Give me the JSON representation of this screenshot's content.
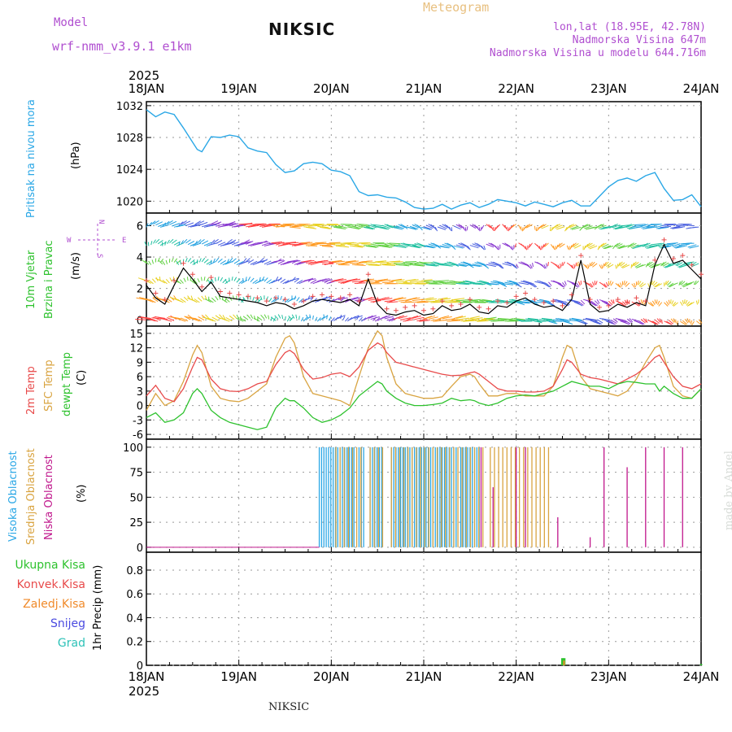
{
  "header": {
    "model_label": "Model",
    "model_name": "wrf-nmm_v3.9.1 e1km",
    "station": "NIKSIC",
    "meteogram": "Meteogram",
    "lonlat": "lon,lat (18.95E, 42.78N)",
    "elevation": "Nadmorska Visina 647m",
    "model_elevation": "Nadmorska Visina u modelu 644.716m",
    "footer_station": "NIKSIC",
    "credit": "made by Angel"
  },
  "colors": {
    "pressure": "#2aa7e6",
    "temp2m": "#e84a4a",
    "sfc": "#d9a441",
    "dew": "#2ec22e",
    "high_cloud": "#2aa7e6",
    "mid_cloud": "#d9a441",
    "low_cloud": "#c0178c",
    "total_precip": "#2ec22e",
    "conv_precip": "#e84a4a",
    "frozen": "#f08a2a",
    "snow": "#4a4ae0",
    "graupel": "#2ec2b8",
    "wind_label": "#2ec22e",
    "compass": "#b04fd0"
  },
  "chart_data": [
    {
      "type": "line",
      "name": "pressure",
      "ylabel_lines": [
        "Pritisak na nivou mora",
        "(hPa)"
      ],
      "year": "2025",
      "x_ticks": [
        "18JAN",
        "19JAN",
        "20JAN",
        "21JAN",
        "22JAN",
        "23JAN",
        "24JAN"
      ],
      "ylim": [
        1018.5,
        1032.5
      ],
      "y_ticks": [
        1020,
        1024,
        1028,
        1032
      ],
      "grid": true,
      "series": [
        {
          "x": [
            0,
            0.1,
            0.2,
            0.3,
            0.4,
            0.5,
            0.55,
            0.6,
            0.7,
            0.8,
            0.9,
            1,
            1.1,
            1.2,
            1.3,
            1.4,
            1.5,
            1.6,
            1.7,
            1.8,
            1.9,
            2,
            2.1,
            2.2,
            2.3,
            2.4,
            2.5,
            2.6,
            2.7,
            2.8,
            2.9,
            3,
            3.1,
            3.2,
            3.3,
            3.4,
            3.5,
            3.6,
            3.7,
            3.8,
            3.9,
            4,
            4.1,
            4.2,
            4.3,
            4.4,
            4.5,
            4.6,
            4.7,
            4.8,
            4.9,
            5,
            5.1,
            5.2,
            5.3,
            5.4,
            5.5,
            5.6,
            5.7,
            5.8,
            5.9,
            6
          ],
          "y": [
            1031.5,
            1030.6,
            1031.2,
            1030.9,
            1029.2,
            1027.4,
            1026.5,
            1026.2,
            1028.1,
            1028.0,
            1028.3,
            1028.1,
            1026.7,
            1026.3,
            1026.1,
            1024.6,
            1023.6,
            1023.8,
            1024.7,
            1024.9,
            1024.7,
            1023.9,
            1023.7,
            1023.2,
            1021.2,
            1020.7,
            1020.8,
            1020.5,
            1020.4,
            1019.9,
            1019.2,
            1019.0,
            1019.1,
            1019.6,
            1019.0,
            1019.5,
            1019.8,
            1019.2,
            1019.6,
            1020.2,
            1020.0,
            1019.8,
            1019.4,
            1019.9,
            1019.6,
            1019.3,
            1019.8,
            1020.1,
            1019.4,
            1019.4,
            1020.6,
            1021.8,
            1022.6,
            1022.9,
            1022.5,
            1023.2,
            1023.6,
            1021.6,
            1020.1,
            1020.2,
            1020.8,
            1019.3
          ]
        }
      ]
    },
    {
      "type": "line",
      "name": "wind",
      "ylabel_lines": [
        "10m Vjetar",
        "Brzina i Pravac",
        "(m/s)"
      ],
      "compass": {
        "n": "N",
        "s": "S",
        "w": "W",
        "e": "E"
      },
      "ylim": [
        -0.4,
        6.8
      ],
      "y_ticks": [
        0,
        2,
        4,
        6
      ],
      "grid": true,
      "series": [
        {
          "name": "speed",
          "x": [
            0,
            0.1,
            0.2,
            0.3,
            0.4,
            0.5,
            0.6,
            0.7,
            0.8,
            0.9,
            1,
            1.1,
            1.2,
            1.3,
            1.4,
            1.5,
            1.6,
            1.7,
            1.8,
            1.9,
            2,
            2.1,
            2.2,
            2.3,
            2.4,
            2.5,
            2.6,
            2.7,
            2.8,
            2.9,
            3,
            3.1,
            3.2,
            3.3,
            3.4,
            3.5,
            3.6,
            3.7,
            3.8,
            3.9,
            4,
            4.1,
            4.2,
            4.3,
            4.4,
            4.5,
            4.6,
            4.7,
            4.8,
            4.9,
            5,
            5.1,
            5.2,
            5.3,
            5.4,
            5.5,
            5.6,
            5.7,
            5.8,
            5.9,
            6
          ],
          "y": [
            2.2,
            1.4,
            1.0,
            2.2,
            3.3,
            2.6,
            1.8,
            2.4,
            1.5,
            1.4,
            1.3,
            1.2,
            1.1,
            0.9,
            1.1,
            1.0,
            0.7,
            0.9,
            1.2,
            1.3,
            1.2,
            1.1,
            1.3,
            0.9,
            2.6,
            1.0,
            0.4,
            0.3,
            0.5,
            0.6,
            0.3,
            0.4,
            0.9,
            0.6,
            0.7,
            1.0,
            0.5,
            0.4,
            0.9,
            0.8,
            1.2,
            1.4,
            1.0,
            0.8,
            0.9,
            0.6,
            1.3,
            3.8,
            1.0,
            0.5,
            0.6,
            1.0,
            0.8,
            1.1,
            0.9,
            3.5,
            4.8,
            3.6,
            3.8,
            3.2,
            2.6
          ]
        }
      ]
    },
    {
      "type": "line",
      "name": "temperature",
      "ylabel_lines": [
        "2m Temp",
        "SFC Temp",
        "dewpt Temp",
        "(C)"
      ],
      "ylim": [
        -7,
        16.5
      ],
      "y_ticks": [
        -6,
        -3,
        0,
        3,
        6,
        9,
        12,
        15
      ],
      "grid": true,
      "series": [
        {
          "name": "2m Temp",
          "x": [
            0,
            0.1,
            0.2,
            0.3,
            0.4,
            0.5,
            0.55,
            0.6,
            0.7,
            0.8,
            0.9,
            1,
            1.1,
            1.2,
            1.3,
            1.4,
            1.5,
            1.55,
            1.6,
            1.7,
            1.8,
            1.9,
            2,
            2.1,
            2.2,
            2.3,
            2.4,
            2.5,
            2.55,
            2.6,
            2.7,
            2.8,
            2.9,
            3,
            3.1,
            3.2,
            3.3,
            3.4,
            3.5,
            3.55,
            3.6,
            3.7,
            3.8,
            3.9,
            4,
            4.1,
            4.2,
            4.3,
            4.4,
            4.5,
            4.55,
            4.6,
            4.7,
            4.8,
            4.9,
            5,
            5.1,
            5.2,
            5.3,
            5.4,
            5.5,
            5.55,
            5.6,
            5.7,
            5.8,
            5.9,
            6
          ],
          "y": [
            2.0,
            4.2,
            1.5,
            0.8,
            3.5,
            8.0,
            10.0,
            9.5,
            5.5,
            3.5,
            3.0,
            2.9,
            3.5,
            4.5,
            5.0,
            8.5,
            11.0,
            11.5,
            10.8,
            7.5,
            5.5,
            5.8,
            6.5,
            6.8,
            6.0,
            8.0,
            11.5,
            13.0,
            12.5,
            11.0,
            9.0,
            8.5,
            8.0,
            7.5,
            7.0,
            6.5,
            6.2,
            6.3,
            6.8,
            7.0,
            6.5,
            5.0,
            3.5,
            3.0,
            3.0,
            2.8,
            2.8,
            3.0,
            4.0,
            7.5,
            9.5,
            9.0,
            6.5,
            5.8,
            5.5,
            5.0,
            4.5,
            5.5,
            6.5,
            8.0,
            10.0,
            10.5,
            9.0,
            6.0,
            4.0,
            3.5,
            4.5
          ]
        },
        {
          "name": "SFC Temp",
          "x": [
            0,
            0.1,
            0.2,
            0.3,
            0.4,
            0.5,
            0.55,
            0.6,
            0.7,
            0.8,
            0.9,
            1,
            1.1,
            1.2,
            1.3,
            1.4,
            1.5,
            1.55,
            1.6,
            1.7,
            1.8,
            1.9,
            2,
            2.1,
            2.2,
            2.3,
            2.4,
            2.5,
            2.55,
            2.6,
            2.7,
            2.8,
            2.9,
            3,
            3.1,
            3.2,
            3.3,
            3.4,
            3.5,
            3.55,
            3.6,
            3.7,
            3.8,
            3.9,
            4,
            4.1,
            4.2,
            4.3,
            4.4,
            4.5,
            4.55,
            4.6,
            4.7,
            4.8,
            4.9,
            5,
            5.1,
            5.2,
            5.3,
            5.4,
            5.5,
            5.55,
            5.6,
            5.7,
            5.8,
            5.9,
            6
          ],
          "y": [
            -1.0,
            2.5,
            0.0,
            1.0,
            5.0,
            10.5,
            12.5,
            11.0,
            4.0,
            1.5,
            1.0,
            0.8,
            1.5,
            3.0,
            4.5,
            10.0,
            14.0,
            14.5,
            13.0,
            6.0,
            2.5,
            2.0,
            1.5,
            1.0,
            0.0,
            6.0,
            12.0,
            15.5,
            14.5,
            10.0,
            4.5,
            2.5,
            2.0,
            1.5,
            1.5,
            1.8,
            4.0,
            6.0,
            6.5,
            6.0,
            4.5,
            2.0,
            2.0,
            2.5,
            2.5,
            2.0,
            2.0,
            2.0,
            4.0,
            10.0,
            12.5,
            12.0,
            6.0,
            3.5,
            3.0,
            2.5,
            2.0,
            3.0,
            5.5,
            9.0,
            12.0,
            12.5,
            10.0,
            4.0,
            2.0,
            1.5,
            3.5
          ]
        },
        {
          "name": "dewpt Temp",
          "x": [
            0,
            0.1,
            0.2,
            0.3,
            0.4,
            0.5,
            0.55,
            0.6,
            0.7,
            0.8,
            0.9,
            1,
            1.1,
            1.2,
            1.3,
            1.4,
            1.5,
            1.55,
            1.6,
            1.7,
            1.8,
            1.9,
            2,
            2.1,
            2.2,
            2.3,
            2.4,
            2.5,
            2.55,
            2.6,
            2.7,
            2.8,
            2.9,
            3,
            3.1,
            3.2,
            3.3,
            3.4,
            3.5,
            3.55,
            3.6,
            3.7,
            3.8,
            3.9,
            4,
            4.1,
            4.2,
            4.3,
            4.4,
            4.5,
            4.55,
            4.6,
            4.7,
            4.8,
            4.9,
            5,
            5.1,
            5.2,
            5.3,
            5.4,
            5.5,
            5.55,
            5.6,
            5.7,
            5.8,
            5.9,
            6
          ],
          "y": [
            -2.5,
            -1.5,
            -3.5,
            -3.0,
            -1.5,
            2.5,
            3.5,
            2.5,
            -1.0,
            -2.5,
            -3.5,
            -4.0,
            -4.5,
            -5.0,
            -4.5,
            -0.5,
            1.5,
            1.0,
            1.0,
            -0.5,
            -2.5,
            -3.5,
            -3.0,
            -2.0,
            -0.5,
            2.0,
            3.5,
            5.0,
            4.5,
            3.0,
            1.5,
            0.5,
            0.0,
            0.0,
            0.2,
            0.5,
            1.5,
            1.0,
            1.2,
            1.0,
            0.5,
            0.0,
            0.5,
            1.5,
            2.0,
            2.2,
            2.0,
            2.5,
            3.0,
            4.0,
            4.5,
            5.0,
            4.5,
            4.0,
            4.0,
            3.5,
            4.5,
            5.0,
            4.8,
            4.5,
            4.5,
            3.0,
            4.0,
            2.5,
            1.5,
            1.5,
            3.5
          ]
        }
      ]
    },
    {
      "type": "bar",
      "name": "cloud",
      "ylabel_lines": [
        "Visoka Oblacnost",
        "Srednja Oblacnost",
        "Niska Oblacnost",
        "(%)"
      ],
      "ylim": [
        -5,
        108
      ],
      "y_ticks": [
        0,
        25,
        50,
        75,
        100
      ],
      "grid": true,
      "series": [
        {
          "name": "high",
          "ranges": [
            [
              1.87,
              2.25
            ],
            [
              2.3,
              2.35
            ],
            [
              2.42,
              2.55
            ],
            [
              2.65,
              3.35
            ],
            [
              3.4,
              3.6
            ]
          ],
          "step": 0.025,
          "value": 100
        },
        {
          "name": "mid",
          "ranges": [
            [
              2.05,
              2.35
            ],
            [
              2.42,
              2.58
            ],
            [
              2.65,
              3.65
            ],
            [
              3.72,
              4.35
            ]
          ],
          "step": 0.045,
          "value": 100
        },
        {
          "name": "low",
          "x": [
            3.62,
            3.75,
            4.0,
            4.1,
            4.45,
            4.8,
            4.95,
            5.2,
            5.4,
            5.6,
            5.8
          ],
          "y": [
            100,
            60,
            100,
            100,
            30,
            10,
            100,
            80,
            100,
            100,
            100
          ]
        }
      ]
    },
    {
      "type": "bar",
      "name": "precip",
      "ylabel": "1hr Precip (mm)",
      "legend": [
        "Ukupna Kisa",
        "Konvek.Kisa",
        "Zaledj.Kisa",
        "Snijeg",
        "Grad"
      ],
      "ylim": [
        0,
        0.95
      ],
      "y_ticks": [
        0,
        0.2,
        0.4,
        0.6,
        0.8
      ],
      "grid": true,
      "series": [
        {
          "name": "Ukupna Kisa",
          "x": [
            4.5,
            4.52,
            6.0
          ],
          "y": [
            0.06,
            0.06,
            0.01
          ]
        },
        {
          "name": "Konvek.Kisa",
          "x": [
            4.5
          ],
          "y": [
            0.04
          ]
        }
      ]
    }
  ]
}
